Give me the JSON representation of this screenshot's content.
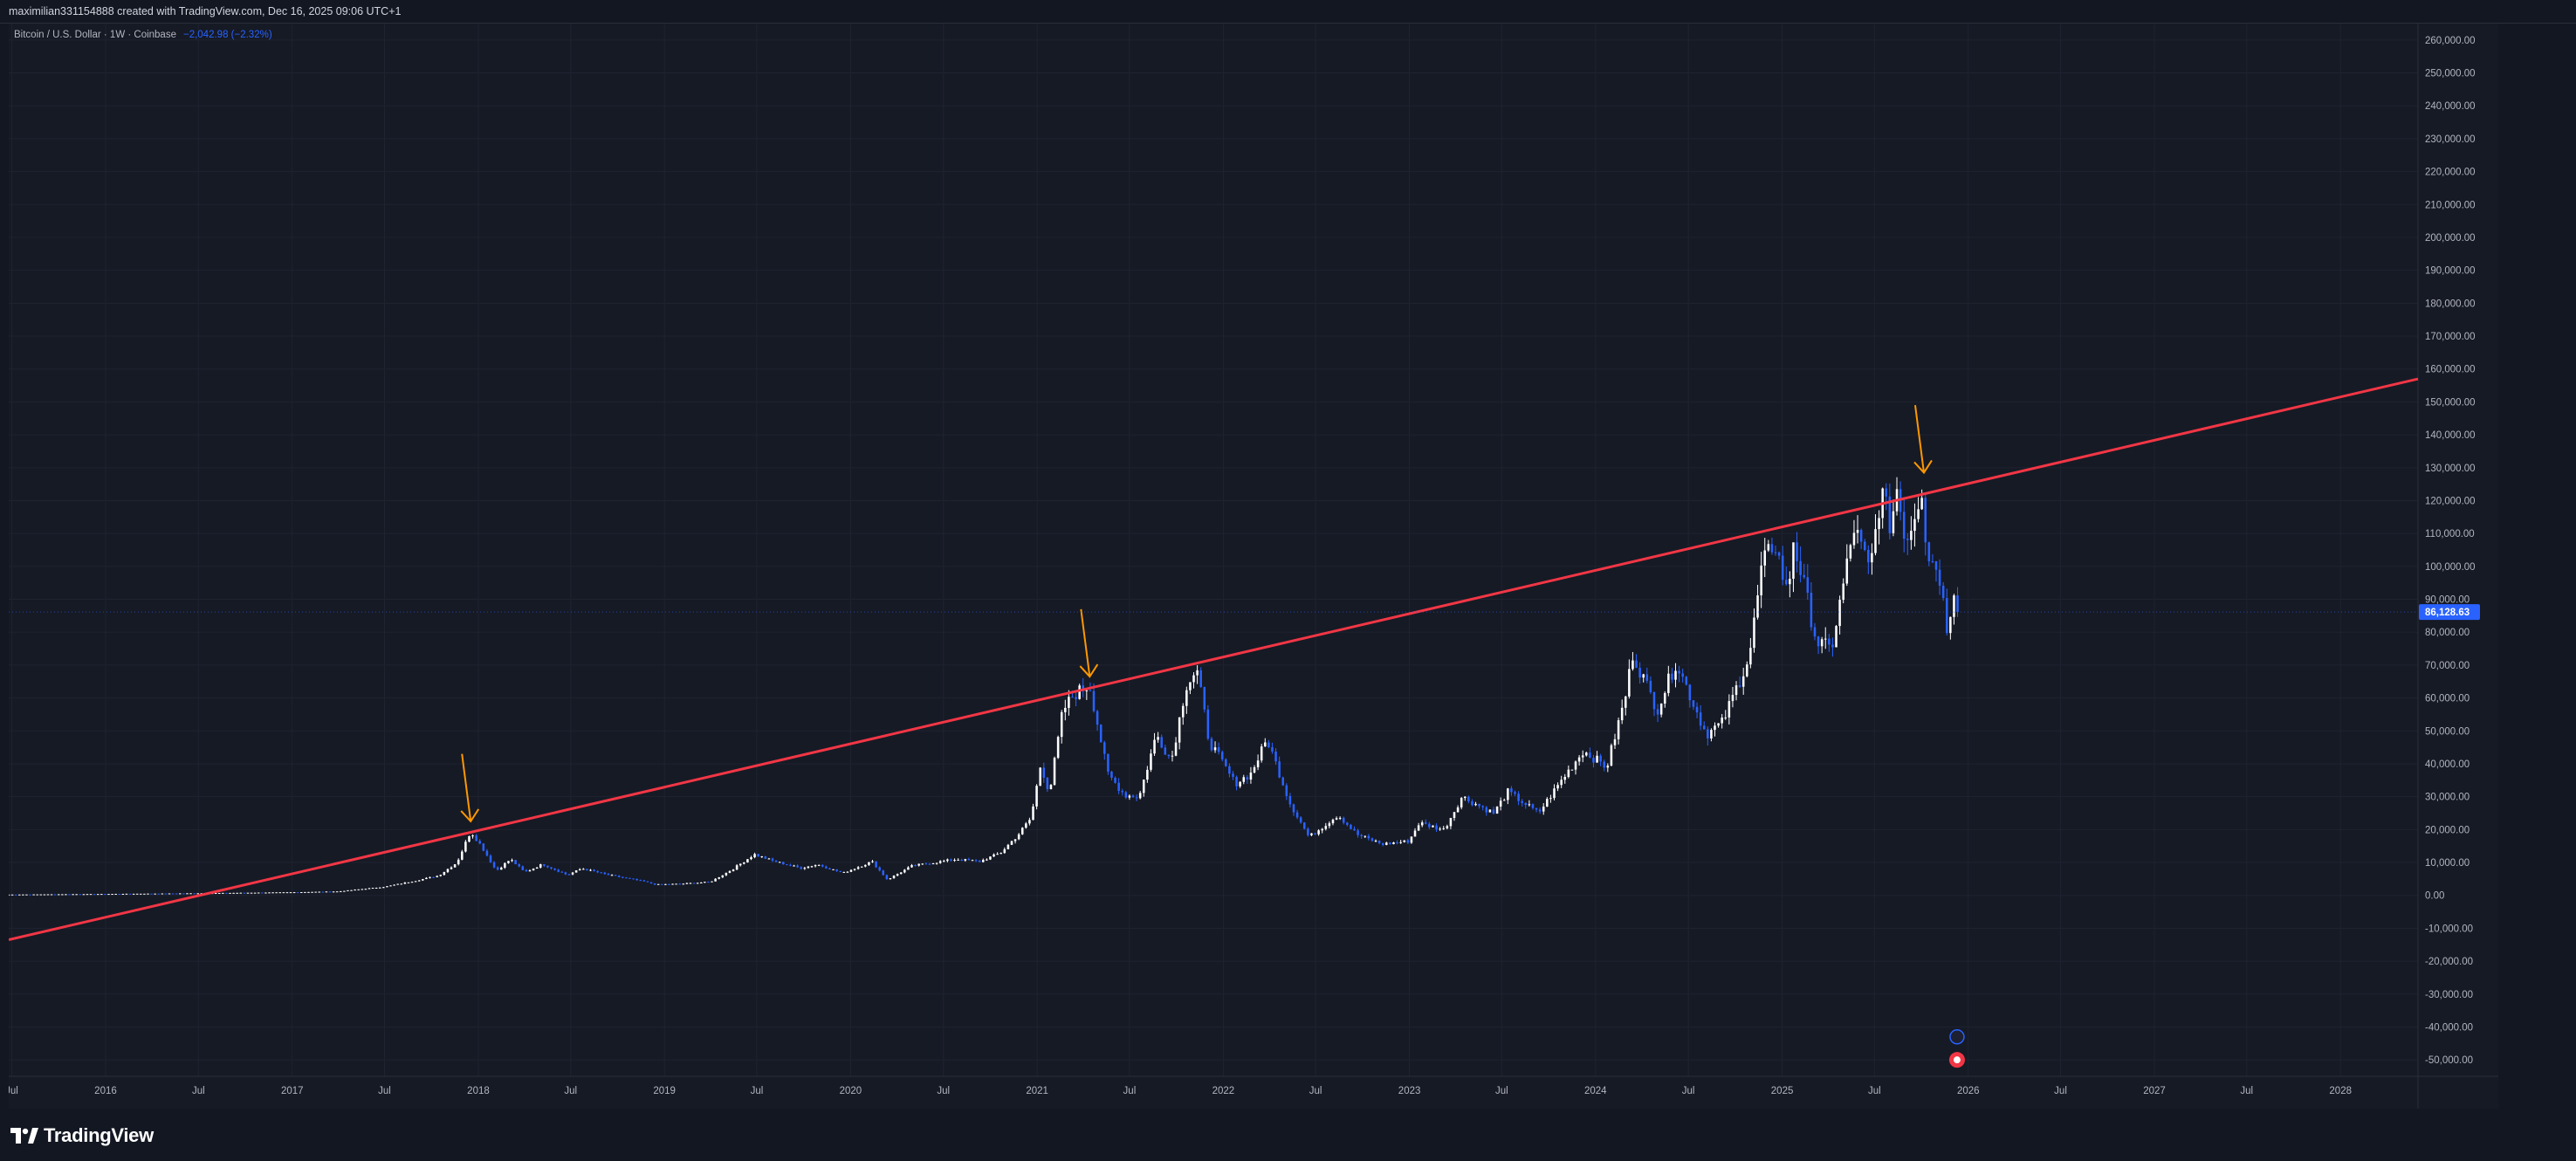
{
  "header": {
    "author_line": "maximilian331154888 created with TradingView.com, Dec 16, 2025 09:06 UTC+1"
  },
  "legend": {
    "symbol": "Bitcoin / U.S. Dollar · 1W · Coinbase",
    "change": "−2,042.98 (−2.32%)"
  },
  "price_tag": "86,128.63",
  "brand": {
    "name": "TradingView",
    "logo_icon": "tradingview-logo-icon"
  },
  "colors": {
    "background": "#161a25",
    "candle_up": "#ffffff",
    "candle_down": "#2962ff",
    "trendline": "#f23645",
    "arrows": "#ff9800",
    "price_tag": "#2962ff"
  },
  "chart_data": {
    "type": "candlestick",
    "title": "Bitcoin / U.S. Dollar · 1W · Coinbase",
    "timeframe": "1W",
    "last_price": 86128.63,
    "ylim": [
      -55000,
      265000
    ],
    "xlim": [
      "2015-06-25",
      "2028-06-01"
    ],
    "grid": true,
    "y_ticks": [
      "260,000.00",
      "250,000.00",
      "240,000.00",
      "230,000.00",
      "220,000.00",
      "210,000.00",
      "200,000.00",
      "190,000.00",
      "180,000.00",
      "170,000.00",
      "160,000.00",
      "150,000.00",
      "140,000.00",
      "130,000.00",
      "120,000.00",
      "110,000.00",
      "100,000.00",
      "90,000.00",
      "80,000.00",
      "70,000.00",
      "60,000.00",
      "50,000.00",
      "40,000.00",
      "30,000.00",
      "20,000.00",
      "10,000.00",
      "0.00",
      "-10,000.00",
      "-20,000.00",
      "-30,000.00",
      "-40,000.00",
      "-50,000.00"
    ],
    "x_ticks": [
      {
        "label": "Jul",
        "date": "2015-07-01"
      },
      {
        "label": "2016",
        "date": "2016-01-01"
      },
      {
        "label": "Jul",
        "date": "2016-07-01"
      },
      {
        "label": "2017",
        "date": "2017-01-01"
      },
      {
        "label": "Jul",
        "date": "2017-07-01"
      },
      {
        "label": "2018",
        "date": "2018-01-01"
      },
      {
        "label": "Jul",
        "date": "2018-07-01"
      },
      {
        "label": "2019",
        "date": "2019-01-01"
      },
      {
        "label": "Jul",
        "date": "2019-07-01"
      },
      {
        "label": "2020",
        "date": "2020-01-01"
      },
      {
        "label": "Jul",
        "date": "2020-07-01"
      },
      {
        "label": "2021",
        "date": "2021-01-01"
      },
      {
        "label": "Jul",
        "date": "2021-07-01"
      },
      {
        "label": "2022",
        "date": "2022-01-01"
      },
      {
        "label": "Jul",
        "date": "2022-07-01"
      },
      {
        "label": "2023",
        "date": "2023-01-01"
      },
      {
        "label": "Jul",
        "date": "2023-07-01"
      },
      {
        "label": "2024",
        "date": "2024-01-01"
      },
      {
        "label": "Jul",
        "date": "2024-07-01"
      },
      {
        "label": "2025",
        "date": "2025-01-01"
      },
      {
        "label": "Jul",
        "date": "2025-07-01"
      },
      {
        "label": "2026",
        "date": "2026-01-01"
      },
      {
        "label": "Jul",
        "date": "2026-07-01"
      },
      {
        "label": "2027",
        "date": "2027-01-01"
      },
      {
        "label": "Jul",
        "date": "2027-07-01"
      },
      {
        "label": "2028",
        "date": "2028-01-01"
      }
    ],
    "price_path": [
      [
        "2015-06-25",
        250
      ],
      [
        "2016-01-01",
        430
      ],
      [
        "2016-07-01",
        650
      ],
      [
        "2017-01-01",
        950
      ],
      [
        "2017-04-01",
        1200
      ],
      [
        "2017-07-01",
        2600
      ],
      [
        "2017-09-01",
        4500
      ],
      [
        "2017-10-15",
        6000
      ],
      [
        "2017-11-20",
        10000
      ],
      [
        "2017-12-17",
        19500
      ],
      [
        "2018-01-07",
        15000
      ],
      [
        "2018-02-05",
        7500
      ],
      [
        "2018-03-05",
        11000
      ],
      [
        "2018-04-02",
        7000
      ],
      [
        "2018-05-07",
        9500
      ],
      [
        "2018-06-25",
        6200
      ],
      [
        "2018-07-23",
        8200
      ],
      [
        "2018-09-10",
        6300
      ],
      [
        "2018-11-20",
        4300
      ],
      [
        "2018-12-15",
        3300
      ],
      [
        "2019-02-01",
        3500
      ],
      [
        "2019-04-01",
        4100
      ],
      [
        "2019-05-15",
        8000
      ],
      [
        "2019-06-26",
        12500
      ],
      [
        "2019-08-01",
        10500
      ],
      [
        "2019-09-25",
        8300
      ],
      [
        "2019-10-28",
        9400
      ],
      [
        "2019-12-17",
        6800
      ],
      [
        "2020-02-12",
        10300
      ],
      [
        "2020-03-13",
        4800
      ],
      [
        "2020-05-01",
        9000
      ],
      [
        "2020-07-27",
        11000
      ],
      [
        "2020-09-10",
        10300
      ],
      [
        "2020-10-21",
        12900
      ],
      [
        "2020-11-25",
        18500
      ],
      [
        "2020-12-20",
        23500
      ],
      [
        "2021-01-08",
        40000
      ],
      [
        "2021-01-25",
        31000
      ],
      [
        "2021-02-20",
        56000
      ],
      [
        "2021-03-13",
        61000
      ],
      [
        "2021-04-14",
        64000
      ],
      [
        "2021-05-19",
        37000
      ],
      [
        "2021-06-22",
        30500
      ],
      [
        "2021-07-20",
        30000
      ],
      [
        "2021-08-23",
        49000
      ],
      [
        "2021-09-21",
        41000
      ],
      [
        "2021-10-20",
        64000
      ],
      [
        "2021-11-10",
        68500
      ],
      [
        "2021-12-04",
        47000
      ],
      [
        "2022-01-24",
        34000
      ],
      [
        "2022-02-24",
        37000
      ],
      [
        "2022-03-28",
        47500
      ],
      [
        "2022-05-12",
        28000
      ],
      [
        "2022-06-18",
        17700
      ],
      [
        "2022-08-14",
        24500
      ],
      [
        "2022-09-20",
        18500
      ],
      [
        "2022-11-09",
        15600
      ],
      [
        "2022-12-31",
        16500
      ],
      [
        "2023-01-20",
        22000
      ],
      [
        "2023-03-10",
        20000
      ],
      [
        "2023-04-14",
        30000
      ],
      [
        "2023-06-15",
        25000
      ],
      [
        "2023-07-13",
        31500
      ],
      [
        "2023-09-11",
        25000
      ],
      [
        "2023-10-24",
        34500
      ],
      [
        "2023-12-08",
        44000
      ],
      [
        "2024-01-23",
        39000
      ],
      [
        "2024-02-28",
        60000
      ],
      [
        "2024-03-14",
        73500
      ],
      [
        "2024-05-01",
        56500
      ],
      [
        "2024-06-07",
        71000
      ],
      [
        "2024-08-05",
        49000
      ],
      [
        "2024-09-06",
        52500
      ],
      [
        "2024-10-29",
        73000
      ],
      [
        "2024-11-22",
        99500
      ],
      [
        "2024-12-17",
        108000
      ],
      [
        "2025-01-13",
        90000
      ],
      [
        "2025-01-21",
        109500
      ],
      [
        "2025-03-10",
        77000
      ],
      [
        "2025-04-07",
        74500
      ],
      [
        "2025-05-22",
        111800
      ],
      [
        "2025-06-22",
        98200
      ],
      [
        "2025-07-14",
        123000
      ],
      [
        "2025-08-02",
        112000
      ],
      [
        "2025-08-14",
        124000
      ],
      [
        "2025-09-01",
        107500
      ],
      [
        "2025-10-06",
        126000
      ],
      [
        "2025-10-10",
        104500
      ],
      [
        "2025-11-04",
        99000
      ],
      [
        "2025-11-21",
        80500
      ],
      [
        "2025-12-03",
        94000
      ],
      [
        "2025-12-16",
        86128
      ]
    ],
    "trendline": {
      "start": [
        "2015-06-25",
        -13500
      ],
      "end": [
        "2028-06-01",
        157000
      ]
    },
    "annotations": [
      {
        "type": "arrow",
        "date": "2017-12-17",
        "from_price": 43000,
        "to_price": 22500
      },
      {
        "type": "arrow",
        "date": "2021-04-14",
        "from_price": 87000,
        "to_price": 66500
      },
      {
        "type": "arrow",
        "date": "2025-10-06",
        "from_price": 149000,
        "to_price": 128500
      }
    ]
  }
}
